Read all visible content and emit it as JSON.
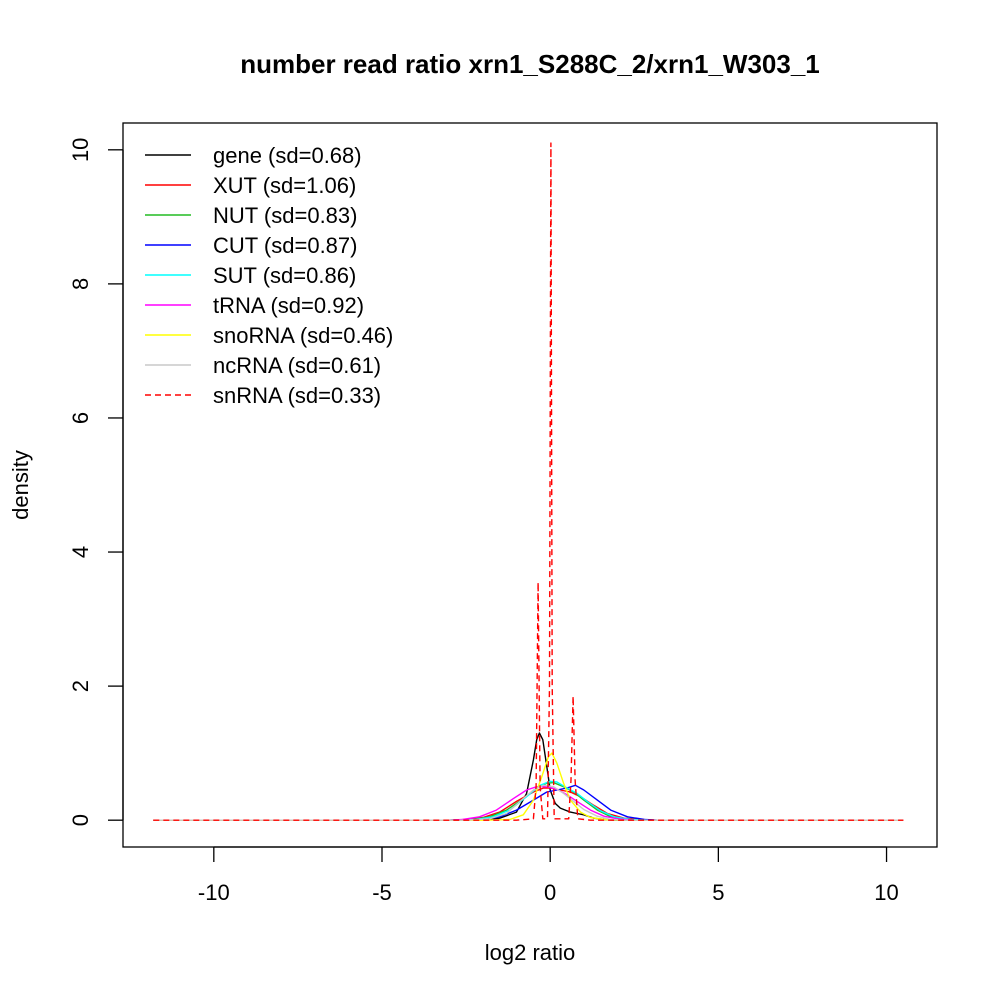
{
  "chart_data": {
    "type": "line",
    "title": "number read ratio xrn1_S288C_2/xrn1_W303_1",
    "xlabel": "log2 ratio",
    "ylabel": "density",
    "xlim": [
      -12.7,
      11.5
    ],
    "ylim": [
      -0.4,
      10.4
    ],
    "xticks": [
      -10,
      -5,
      0,
      5,
      10
    ],
    "xtick_labels": [
      "-10",
      "-5",
      "0",
      "5",
      "10"
    ],
    "yticks": [
      0,
      2,
      4,
      6,
      8,
      10
    ],
    "ytick_labels": [
      "0",
      "2",
      "4",
      "6",
      "8",
      "10"
    ],
    "grid": false,
    "legend_position": "top-left",
    "series": [
      {
        "name": "gene (sd=0.68)",
        "color": "#000000",
        "dashed": false,
        "points": [
          [
            -11.8,
            0
          ],
          [
            -3,
            0
          ],
          [
            -2,
            0.01
          ],
          [
            -1.5,
            0.03
          ],
          [
            -1.0,
            0.12
          ],
          [
            -0.7,
            0.4
          ],
          [
            -0.5,
            0.9
          ],
          [
            -0.4,
            1.2
          ],
          [
            -0.32,
            1.3
          ],
          [
            -0.22,
            1.2
          ],
          [
            -0.1,
            0.8
          ],
          [
            0.0,
            0.45
          ],
          [
            0.15,
            0.25
          ],
          [
            0.3,
            0.18
          ],
          [
            0.45,
            0.15
          ],
          [
            0.6,
            0.12
          ],
          [
            0.8,
            0.1
          ],
          [
            1.0,
            0.08
          ],
          [
            1.3,
            0.03
          ],
          [
            1.6,
            0.01
          ],
          [
            2.0,
            0
          ],
          [
            10.5,
            0
          ]
        ]
      },
      {
        "name": "XUT (sd=1.06)",
        "color": "#ff0000",
        "dashed": false,
        "points": [
          [
            -11.8,
            0
          ],
          [
            -3,
            0
          ],
          [
            -2.5,
            0.01
          ],
          [
            -2.0,
            0.04
          ],
          [
            -1.5,
            0.12
          ],
          [
            -1.0,
            0.28
          ],
          [
            -0.5,
            0.42
          ],
          [
            -0.2,
            0.48
          ],
          [
            0.0,
            0.48
          ],
          [
            0.3,
            0.45
          ],
          [
            0.6,
            0.42
          ],
          [
            0.9,
            0.35
          ],
          [
            1.3,
            0.22
          ],
          [
            1.7,
            0.1
          ],
          [
            2.2,
            0.03
          ],
          [
            2.7,
            0.01
          ],
          [
            3.2,
            0
          ],
          [
            10.5,
            0
          ]
        ]
      },
      {
        "name": "NUT (sd=0.83)",
        "color": "#22bb22",
        "dashed": false,
        "points": [
          [
            -11.8,
            0
          ],
          [
            -3,
            0
          ],
          [
            -2.3,
            0.01
          ],
          [
            -1.8,
            0.05
          ],
          [
            -1.3,
            0.15
          ],
          [
            -0.8,
            0.32
          ],
          [
            -0.4,
            0.48
          ],
          [
            -0.1,
            0.55
          ],
          [
            0.1,
            0.56
          ],
          [
            0.4,
            0.5
          ],
          [
            0.7,
            0.42
          ],
          [
            1.0,
            0.3
          ],
          [
            1.4,
            0.15
          ],
          [
            1.8,
            0.05
          ],
          [
            2.3,
            0.01
          ],
          [
            2.8,
            0
          ],
          [
            10.5,
            0
          ]
        ]
      },
      {
        "name": "CUT (sd=0.87)",
        "color": "#0000ff",
        "dashed": false,
        "points": [
          [
            -11.8,
            0
          ],
          [
            -3,
            0
          ],
          [
            -2.0,
            0.01
          ],
          [
            -1.5,
            0.05
          ],
          [
            -1.0,
            0.15
          ],
          [
            -0.5,
            0.3
          ],
          [
            -0.1,
            0.42
          ],
          [
            0.2,
            0.45
          ],
          [
            0.5,
            0.48
          ],
          [
            0.75,
            0.52
          ],
          [
            1.0,
            0.45
          ],
          [
            1.4,
            0.3
          ],
          [
            1.8,
            0.15
          ],
          [
            2.3,
            0.05
          ],
          [
            2.8,
            0.01
          ],
          [
            3.2,
            0
          ],
          [
            10.5,
            0
          ]
        ]
      },
      {
        "name": "SUT (sd=0.86)",
        "color": "#00ffff",
        "dashed": false,
        "points": [
          [
            -11.8,
            0
          ],
          [
            -3,
            0
          ],
          [
            -2.2,
            0.01
          ],
          [
            -1.7,
            0.05
          ],
          [
            -1.2,
            0.15
          ],
          [
            -0.7,
            0.35
          ],
          [
            -0.3,
            0.52
          ],
          [
            0.0,
            0.58
          ],
          [
            0.2,
            0.57
          ],
          [
            0.5,
            0.48
          ],
          [
            0.8,
            0.4
          ],
          [
            1.1,
            0.28
          ],
          [
            1.5,
            0.14
          ],
          [
            1.9,
            0.05
          ],
          [
            2.4,
            0.01
          ],
          [
            2.9,
            0
          ],
          [
            10.5,
            0
          ]
        ]
      },
      {
        "name": "tRNA (sd=0.92)",
        "color": "#ff00ff",
        "dashed": false,
        "points": [
          [
            -11.8,
            0
          ],
          [
            -3,
            0
          ],
          [
            -2.6,
            0.01
          ],
          [
            -2.1,
            0.05
          ],
          [
            -1.6,
            0.15
          ],
          [
            -1.1,
            0.32
          ],
          [
            -0.7,
            0.45
          ],
          [
            -0.4,
            0.5
          ],
          [
            -0.1,
            0.5
          ],
          [
            0.2,
            0.46
          ],
          [
            0.5,
            0.38
          ],
          [
            0.8,
            0.28
          ],
          [
            1.2,
            0.15
          ],
          [
            1.6,
            0.06
          ],
          [
            2.0,
            0.02
          ],
          [
            2.5,
            0
          ],
          [
            10.5,
            0
          ]
        ]
      },
      {
        "name": "snoRNA (sd=0.46)",
        "color": "#ffff00",
        "dashed": false,
        "points": [
          [
            -11.8,
            0
          ],
          [
            -2,
            0
          ],
          [
            -1.2,
            0.01
          ],
          [
            -0.8,
            0.08
          ],
          [
            -0.5,
            0.3
          ],
          [
            -0.25,
            0.65
          ],
          [
            -0.05,
            0.95
          ],
          [
            0.05,
            1.0
          ],
          [
            0.2,
            0.85
          ],
          [
            0.4,
            0.55
          ],
          [
            0.6,
            0.3
          ],
          [
            0.9,
            0.12
          ],
          [
            1.2,
            0.04
          ],
          [
            1.6,
            0.01
          ],
          [
            2.0,
            0
          ],
          [
            10.5,
            0
          ]
        ]
      },
      {
        "name": "ncRNA (sd=0.61)",
        "color": "#c8c8c8",
        "dashed": false,
        "points": [
          [
            -11.8,
            0
          ],
          [
            -2.5,
            0
          ],
          [
            -1.8,
            0.02
          ],
          [
            -1.3,
            0.1
          ],
          [
            -0.9,
            0.28
          ],
          [
            -0.5,
            0.45
          ],
          [
            -0.2,
            0.52
          ],
          [
            0.1,
            0.5
          ],
          [
            0.4,
            0.4
          ],
          [
            0.7,
            0.28
          ],
          [
            1.0,
            0.16
          ],
          [
            1.4,
            0.06
          ],
          [
            1.8,
            0.01
          ],
          [
            2.2,
            0
          ],
          [
            10.5,
            0
          ]
        ]
      },
      {
        "name": "snRNA (sd=0.33)",
        "color": "#ff0000",
        "dashed": true,
        "points": [
          [
            -11.8,
            0
          ],
          [
            -1.0,
            0
          ],
          [
            -0.5,
            0.02
          ],
          [
            -0.42,
            0.5
          ],
          [
            -0.36,
            3.55
          ],
          [
            -0.3,
            0.5
          ],
          [
            -0.22,
            0.02
          ],
          [
            -0.08,
            0.02
          ],
          [
            -0.02,
            2.0
          ],
          [
            0.02,
            10.1
          ],
          [
            0.06,
            2.0
          ],
          [
            0.12,
            0.02
          ],
          [
            0.55,
            0.02
          ],
          [
            0.62,
            0.6
          ],
          [
            0.68,
            1.85
          ],
          [
            0.74,
            0.6
          ],
          [
            0.82,
            0.02
          ],
          [
            1.2,
            0
          ],
          [
            10.5,
            0
          ]
        ]
      }
    ]
  }
}
